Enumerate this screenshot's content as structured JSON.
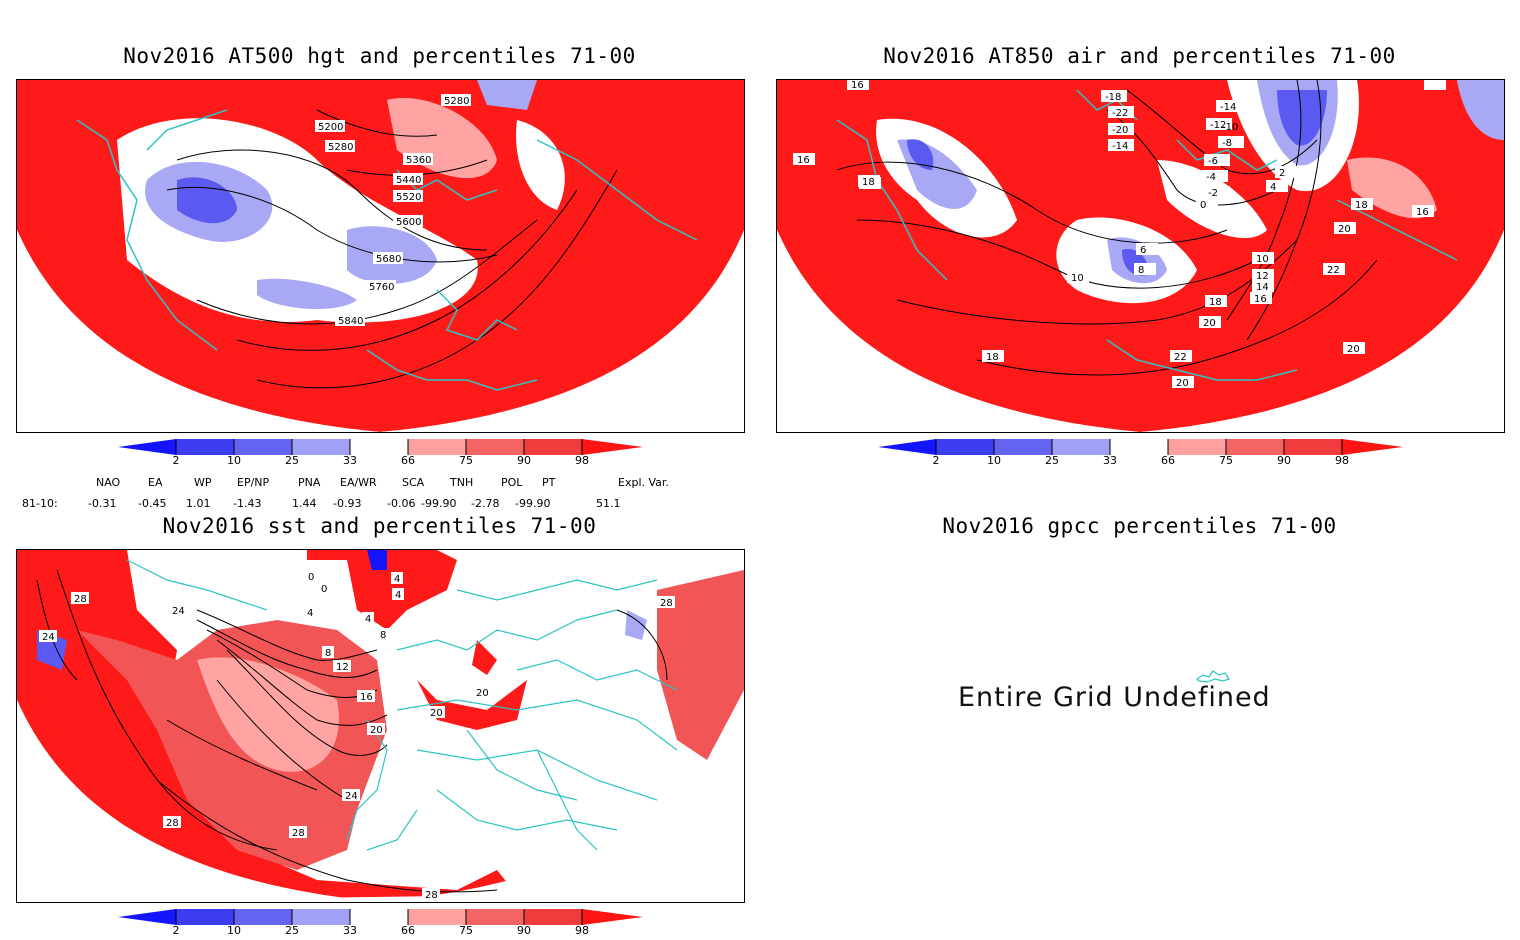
{
  "panels": {
    "hgt": {
      "title": "Nov2016 AT500 hgt and percentiles 71-00",
      "contour_labels": [
        "5280",
        "5200",
        "5280",
        "5360",
        "5440",
        "5520",
        "5600",
        "5680",
        "5760",
        "5840"
      ]
    },
    "air": {
      "title": "Nov2016 AT850 air and percentiles 71-00",
      "contour_labels": [
        "-18",
        "-22",
        "-20",
        "-14",
        "-14",
        "-12",
        "-10",
        "-8",
        "-6",
        "-4",
        "-2",
        "0",
        "2",
        "4",
        "6",
        "8",
        "10",
        "10",
        "12",
        "14",
        "16",
        "16",
        "16",
        "18",
        "18",
        "18",
        "18",
        "20",
        "20",
        "20",
        "20",
        "22",
        "22",
        "16"
      ]
    },
    "sst": {
      "title": "Nov2016 sst and percentiles 71-00",
      "contour_labels": [
        "28",
        "24",
        "24",
        "28",
        "0",
        "4",
        "0",
        "4",
        "4",
        "4",
        "8",
        "8",
        "12",
        "16",
        "20",
        "20",
        "20",
        "24",
        "28",
        "28",
        "28"
      ]
    },
    "gpcc": {
      "title": "Nov2016 gpcc percentiles 71-00",
      "message": "Entire Grid Undefined"
    }
  },
  "colorbar": {
    "labels": [
      "2",
      "10",
      "25",
      "33",
      "66",
      "75",
      "90",
      "98"
    ],
    "colors": {
      "p0": "#1414ff",
      "p2": "#3c3cf0",
      "p10": "#6464f0",
      "p25": "#a0a0f5",
      "p33": "#ffffff",
      "p66": "#ffa0a0",
      "p75": "#f56464",
      "p90": "#f03c3c",
      "p98": "#ff1414"
    }
  },
  "indices": {
    "headers": [
      "NAO",
      "EA",
      "WP",
      "EP/NP",
      "PNA",
      "EA/WR",
      "SCA",
      "TNH",
      "POL",
      "PT",
      "Expl. Var."
    ],
    "row_label": "81-10:",
    "values": [
      "-0.31",
      "-0.45",
      "1.01",
      "-1.43",
      "1.44",
      "-0.93",
      "-0.06",
      "-99.90",
      "-2.78",
      "-99.90",
      "51.1"
    ]
  },
  "map_colors": {
    "coast": "#2ec4c4",
    "contour": "#000000",
    "red": "#ff1a1a",
    "mid_red": "#f25555",
    "pale_red": "#ffa3a3",
    "blue": "#5a5af0",
    "pale_blue": "#a8a8f5"
  }
}
